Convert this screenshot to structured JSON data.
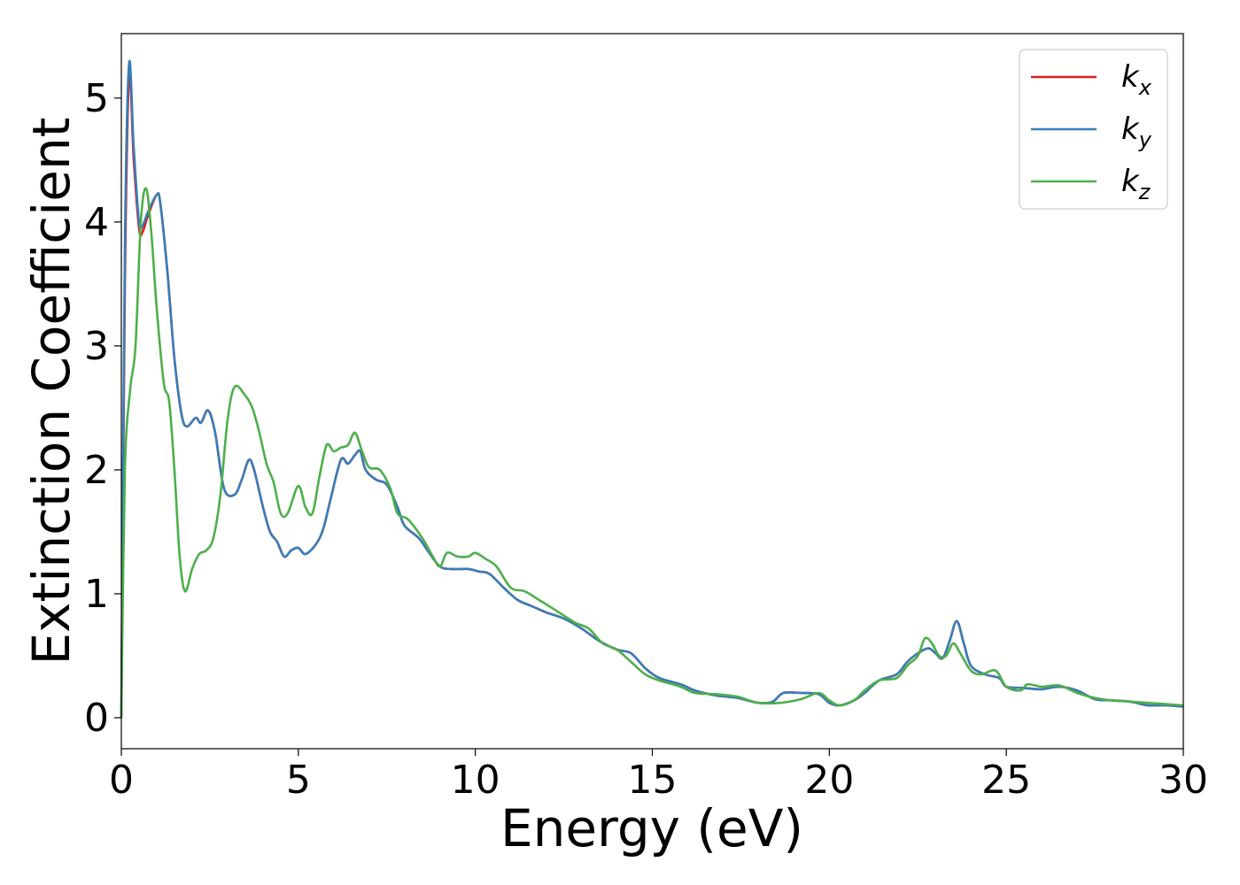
{
  "chart_data": {
    "type": "line",
    "title": "",
    "xlabel": "Energy (eV)",
    "ylabel": "Extinction Coefficient",
    "xlim": [
      0,
      30
    ],
    "ylim": [
      -0.25,
      5.52
    ],
    "xticks": [
      0,
      5,
      10,
      15,
      20,
      25,
      30
    ],
    "yticks": [
      0,
      1,
      2,
      3,
      4,
      5
    ],
    "grid": false,
    "legend_position": "top-right",
    "series": [
      {
        "name": "k",
        "subscript": "x",
        "color": "#e41a1c",
        "points": [
          [
            0,
            0
          ],
          [
            0.1,
            3.5
          ],
          [
            0.22,
            5.18
          ],
          [
            0.35,
            4.5
          ],
          [
            0.5,
            3.95
          ],
          [
            0.6,
            3.92
          ],
          [
            0.75,
            4.05
          ],
          [
            1.0,
            4.22
          ],
          [
            1.1,
            4.15
          ],
          [
            1.3,
            3.6
          ],
          [
            1.5,
            2.9
          ],
          [
            1.7,
            2.45
          ],
          [
            1.85,
            2.35
          ],
          [
            2.1,
            2.42
          ],
          [
            2.25,
            2.38
          ],
          [
            2.45,
            2.48
          ],
          [
            2.65,
            2.3
          ],
          [
            2.9,
            1.85
          ],
          [
            3.2,
            1.8
          ],
          [
            3.4,
            1.92
          ],
          [
            3.6,
            2.08
          ],
          [
            3.75,
            2.0
          ],
          [
            4.0,
            1.7
          ],
          [
            4.2,
            1.5
          ],
          [
            4.4,
            1.42
          ],
          [
            4.6,
            1.3
          ],
          [
            4.8,
            1.35
          ],
          [
            5.0,
            1.37
          ],
          [
            5.2,
            1.32
          ],
          [
            5.5,
            1.4
          ],
          [
            5.7,
            1.52
          ],
          [
            5.9,
            1.75
          ],
          [
            6.2,
            2.08
          ],
          [
            6.4,
            2.05
          ],
          [
            6.6,
            2.12
          ],
          [
            6.75,
            2.15
          ],
          [
            6.9,
            2.0
          ],
          [
            7.2,
            1.92
          ],
          [
            7.5,
            1.88
          ],
          [
            7.8,
            1.7
          ],
          [
            8.0,
            1.55
          ],
          [
            8.4,
            1.45
          ],
          [
            8.7,
            1.33
          ],
          [
            9.0,
            1.22
          ],
          [
            9.3,
            1.2
          ],
          [
            9.8,
            1.2
          ],
          [
            10.1,
            1.18
          ],
          [
            10.4,
            1.16
          ],
          [
            10.8,
            1.05
          ],
          [
            11.2,
            0.95
          ],
          [
            11.6,
            0.9
          ],
          [
            12.0,
            0.85
          ],
          [
            12.5,
            0.8
          ],
          [
            13.0,
            0.72
          ],
          [
            13.5,
            0.62
          ],
          [
            14.0,
            0.55
          ],
          [
            14.4,
            0.52
          ],
          [
            14.8,
            0.4
          ],
          [
            15.2,
            0.32
          ],
          [
            15.8,
            0.27
          ],
          [
            16.2,
            0.22
          ],
          [
            16.8,
            0.18
          ],
          [
            17.4,
            0.16
          ],
          [
            18.0,
            0.12
          ],
          [
            18.4,
            0.13
          ],
          [
            18.7,
            0.2
          ],
          [
            19.2,
            0.2
          ],
          [
            19.7,
            0.19
          ],
          [
            20.0,
            0.12
          ],
          [
            20.3,
            0.1
          ],
          [
            20.7,
            0.14
          ],
          [
            21.0,
            0.2
          ],
          [
            21.4,
            0.3
          ],
          [
            21.9,
            0.35
          ],
          [
            22.2,
            0.45
          ],
          [
            22.5,
            0.52
          ],
          [
            22.8,
            0.56
          ],
          [
            23.0,
            0.52
          ],
          [
            23.2,
            0.48
          ],
          [
            23.4,
            0.62
          ],
          [
            23.6,
            0.78
          ],
          [
            23.8,
            0.6
          ],
          [
            24.0,
            0.42
          ],
          [
            24.4,
            0.35
          ],
          [
            24.8,
            0.32
          ],
          [
            25.0,
            0.25
          ],
          [
            25.5,
            0.24
          ],
          [
            26.0,
            0.23
          ],
          [
            26.5,
            0.25
          ],
          [
            27.0,
            0.22
          ],
          [
            27.5,
            0.15
          ],
          [
            28.0,
            0.14
          ],
          [
            28.5,
            0.13
          ],
          [
            29.0,
            0.1
          ],
          [
            29.5,
            0.1
          ],
          [
            30.0,
            0.09
          ]
        ]
      },
      {
        "name": "k",
        "subscript": "y",
        "color": "#377eb8",
        "points": [
          [
            0,
            0
          ],
          [
            0.1,
            3.8
          ],
          [
            0.22,
            5.28
          ],
          [
            0.35,
            4.6
          ],
          [
            0.5,
            4.0
          ],
          [
            0.6,
            3.97
          ],
          [
            0.75,
            4.08
          ],
          [
            1.0,
            4.22
          ],
          [
            1.1,
            4.15
          ],
          [
            1.3,
            3.6
          ],
          [
            1.5,
            2.9
          ],
          [
            1.7,
            2.45
          ],
          [
            1.85,
            2.35
          ],
          [
            2.1,
            2.42
          ],
          [
            2.25,
            2.38
          ],
          [
            2.45,
            2.48
          ],
          [
            2.65,
            2.3
          ],
          [
            2.9,
            1.85
          ],
          [
            3.2,
            1.8
          ],
          [
            3.4,
            1.92
          ],
          [
            3.6,
            2.08
          ],
          [
            3.75,
            2.0
          ],
          [
            4.0,
            1.7
          ],
          [
            4.2,
            1.5
          ],
          [
            4.4,
            1.42
          ],
          [
            4.6,
            1.3
          ],
          [
            4.8,
            1.35
          ],
          [
            5.0,
            1.37
          ],
          [
            5.2,
            1.32
          ],
          [
            5.5,
            1.4
          ],
          [
            5.7,
            1.52
          ],
          [
            5.9,
            1.75
          ],
          [
            6.2,
            2.08
          ],
          [
            6.4,
            2.05
          ],
          [
            6.6,
            2.12
          ],
          [
            6.75,
            2.15
          ],
          [
            6.9,
            2.0
          ],
          [
            7.2,
            1.92
          ],
          [
            7.5,
            1.88
          ],
          [
            7.8,
            1.7
          ],
          [
            8.0,
            1.55
          ],
          [
            8.4,
            1.45
          ],
          [
            8.7,
            1.33
          ],
          [
            9.0,
            1.22
          ],
          [
            9.3,
            1.2
          ],
          [
            9.8,
            1.2
          ],
          [
            10.1,
            1.18
          ],
          [
            10.4,
            1.16
          ],
          [
            10.8,
            1.05
          ],
          [
            11.2,
            0.95
          ],
          [
            11.6,
            0.9
          ],
          [
            12.0,
            0.85
          ],
          [
            12.5,
            0.8
          ],
          [
            13.0,
            0.72
          ],
          [
            13.5,
            0.62
          ],
          [
            14.0,
            0.55
          ],
          [
            14.4,
            0.52
          ],
          [
            14.8,
            0.4
          ],
          [
            15.2,
            0.32
          ],
          [
            15.8,
            0.27
          ],
          [
            16.2,
            0.22
          ],
          [
            16.8,
            0.18
          ],
          [
            17.4,
            0.16
          ],
          [
            18.0,
            0.12
          ],
          [
            18.4,
            0.13
          ],
          [
            18.7,
            0.2
          ],
          [
            19.2,
            0.2
          ],
          [
            19.7,
            0.19
          ],
          [
            20.0,
            0.12
          ],
          [
            20.3,
            0.1
          ],
          [
            20.7,
            0.14
          ],
          [
            21.0,
            0.2
          ],
          [
            21.4,
            0.3
          ],
          [
            21.9,
            0.35
          ],
          [
            22.2,
            0.45
          ],
          [
            22.5,
            0.52
          ],
          [
            22.8,
            0.56
          ],
          [
            23.0,
            0.52
          ],
          [
            23.2,
            0.48
          ],
          [
            23.4,
            0.62
          ],
          [
            23.6,
            0.78
          ],
          [
            23.8,
            0.6
          ],
          [
            24.0,
            0.42
          ],
          [
            24.4,
            0.35
          ],
          [
            24.8,
            0.32
          ],
          [
            25.0,
            0.25
          ],
          [
            25.5,
            0.24
          ],
          [
            26.0,
            0.23
          ],
          [
            26.5,
            0.25
          ],
          [
            27.0,
            0.22
          ],
          [
            27.5,
            0.15
          ],
          [
            28.0,
            0.14
          ],
          [
            28.5,
            0.13
          ],
          [
            29.0,
            0.1
          ],
          [
            29.5,
            0.1
          ],
          [
            30.0,
            0.09
          ]
        ]
      },
      {
        "name": "k",
        "subscript": "z",
        "color": "#4daf4a",
        "points": [
          [
            0,
            0
          ],
          [
            0.1,
            2.0
          ],
          [
            0.25,
            2.65
          ],
          [
            0.4,
            3.0
          ],
          [
            0.55,
            4.0
          ],
          [
            0.7,
            4.27
          ],
          [
            0.85,
            3.9
          ],
          [
            1.0,
            3.3
          ],
          [
            1.2,
            2.7
          ],
          [
            1.35,
            2.55
          ],
          [
            1.5,
            2.0
          ],
          [
            1.65,
            1.3
          ],
          [
            1.8,
            1.02
          ],
          [
            2.0,
            1.2
          ],
          [
            2.2,
            1.32
          ],
          [
            2.4,
            1.35
          ],
          [
            2.6,
            1.45
          ],
          [
            2.8,
            1.8
          ],
          [
            3.0,
            2.4
          ],
          [
            3.2,
            2.67
          ],
          [
            3.5,
            2.6
          ],
          [
            3.7,
            2.5
          ],
          [
            3.9,
            2.3
          ],
          [
            4.1,
            2.05
          ],
          [
            4.3,
            1.9
          ],
          [
            4.5,
            1.65
          ],
          [
            4.7,
            1.65
          ],
          [
            5.0,
            1.87
          ],
          [
            5.2,
            1.7
          ],
          [
            5.4,
            1.65
          ],
          [
            5.6,
            1.95
          ],
          [
            5.8,
            2.2
          ],
          [
            6.0,
            2.15
          ],
          [
            6.2,
            2.18
          ],
          [
            6.4,
            2.2
          ],
          [
            6.6,
            2.3
          ],
          [
            6.8,
            2.15
          ],
          [
            7.0,
            2.02
          ],
          [
            7.3,
            2.0
          ],
          [
            7.6,
            1.85
          ],
          [
            7.8,
            1.65
          ],
          [
            8.1,
            1.6
          ],
          [
            8.5,
            1.45
          ],
          [
            8.8,
            1.3
          ],
          [
            9.0,
            1.22
          ],
          [
            9.2,
            1.33
          ],
          [
            9.5,
            1.3
          ],
          [
            9.8,
            1.3
          ],
          [
            10.0,
            1.33
          ],
          [
            10.3,
            1.28
          ],
          [
            10.6,
            1.22
          ],
          [
            11.0,
            1.05
          ],
          [
            11.4,
            1.02
          ],
          [
            11.8,
            0.95
          ],
          [
            12.2,
            0.88
          ],
          [
            12.8,
            0.77
          ],
          [
            13.2,
            0.72
          ],
          [
            13.6,
            0.6
          ],
          [
            14.0,
            0.55
          ],
          [
            14.4,
            0.45
          ],
          [
            14.8,
            0.35
          ],
          [
            15.2,
            0.3
          ],
          [
            15.8,
            0.25
          ],
          [
            16.2,
            0.2
          ],
          [
            16.8,
            0.19
          ],
          [
            17.4,
            0.17
          ],
          [
            18.0,
            0.12
          ],
          [
            18.6,
            0.12
          ],
          [
            19.2,
            0.15
          ],
          [
            19.7,
            0.2
          ],
          [
            20.0,
            0.14
          ],
          [
            20.3,
            0.1
          ],
          [
            20.7,
            0.14
          ],
          [
            21.0,
            0.22
          ],
          [
            21.4,
            0.3
          ],
          [
            21.9,
            0.32
          ],
          [
            22.2,
            0.42
          ],
          [
            22.5,
            0.5
          ],
          [
            22.7,
            0.64
          ],
          [
            22.9,
            0.6
          ],
          [
            23.1,
            0.5
          ],
          [
            23.3,
            0.5
          ],
          [
            23.5,
            0.6
          ],
          [
            23.7,
            0.52
          ],
          [
            24.0,
            0.38
          ],
          [
            24.3,
            0.35
          ],
          [
            24.7,
            0.38
          ],
          [
            25.0,
            0.25
          ],
          [
            25.4,
            0.22
          ],
          [
            25.6,
            0.27
          ],
          [
            26.0,
            0.25
          ],
          [
            26.5,
            0.26
          ],
          [
            27.0,
            0.2
          ],
          [
            27.5,
            0.16
          ],
          [
            28.0,
            0.14
          ],
          [
            28.5,
            0.13
          ],
          [
            29.0,
            0.12
          ],
          [
            29.5,
            0.11
          ],
          [
            30.0,
            0.1
          ]
        ]
      }
    ]
  }
}
